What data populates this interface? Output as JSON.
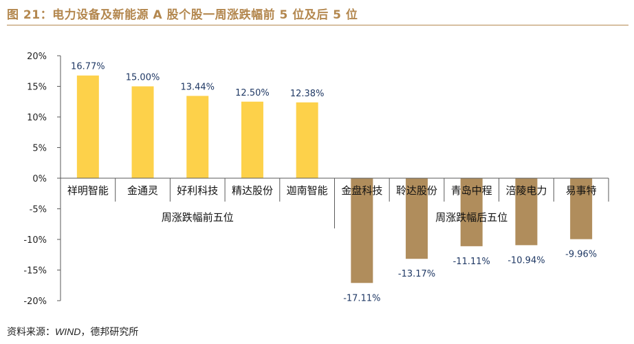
{
  "title": "图 21：电力设备及新能源 A 股个股一周涨跌幅前 5 位及后 5 位",
  "source": {
    "prefix": "资料来源：",
    "org": "WIND",
    "suffix": "，德邦研究所"
  },
  "colors": {
    "title": "#b3874e",
    "top_bar": "#fdd14a",
    "bottom_bar": "#b08d5c",
    "value_label": "#1f3864",
    "axis": "#595959"
  },
  "chart_data": {
    "type": "bar",
    "y_unit": "%",
    "ylim": [
      -20,
      20
    ],
    "yticks": [
      20,
      15,
      10,
      5,
      0,
      -5,
      -10,
      -15,
      -20
    ],
    "ytick_labels": [
      "20%",
      "15%",
      "10%",
      "5%",
      "0%",
      "-5%",
      "-10%",
      "-15%",
      "-20%"
    ],
    "grid": false,
    "legend": "none",
    "groups": [
      {
        "label": "周涨跌幅前五位",
        "categories": [
          "祥明智能",
          "金通灵",
          "好利科技",
          "精达股份",
          "迦南智能"
        ],
        "values": [
          16.77,
          15.0,
          13.44,
          12.5,
          12.38
        ],
        "value_labels": [
          "16.77%",
          "15.00%",
          "13.44%",
          "12.50%",
          "12.38%"
        ]
      },
      {
        "label": "周涨跌幅后五位",
        "categories": [
          "金盘科技",
          "聆达股份",
          "青岛中程",
          "涪陵电力",
          "易事特"
        ],
        "values": [
          -17.11,
          -13.17,
          -11.11,
          -10.94,
          -9.96
        ],
        "value_labels": [
          "-17.11%",
          "-13.17%",
          "-11.11%",
          "-10.94%",
          "-9.96%"
        ]
      }
    ]
  }
}
